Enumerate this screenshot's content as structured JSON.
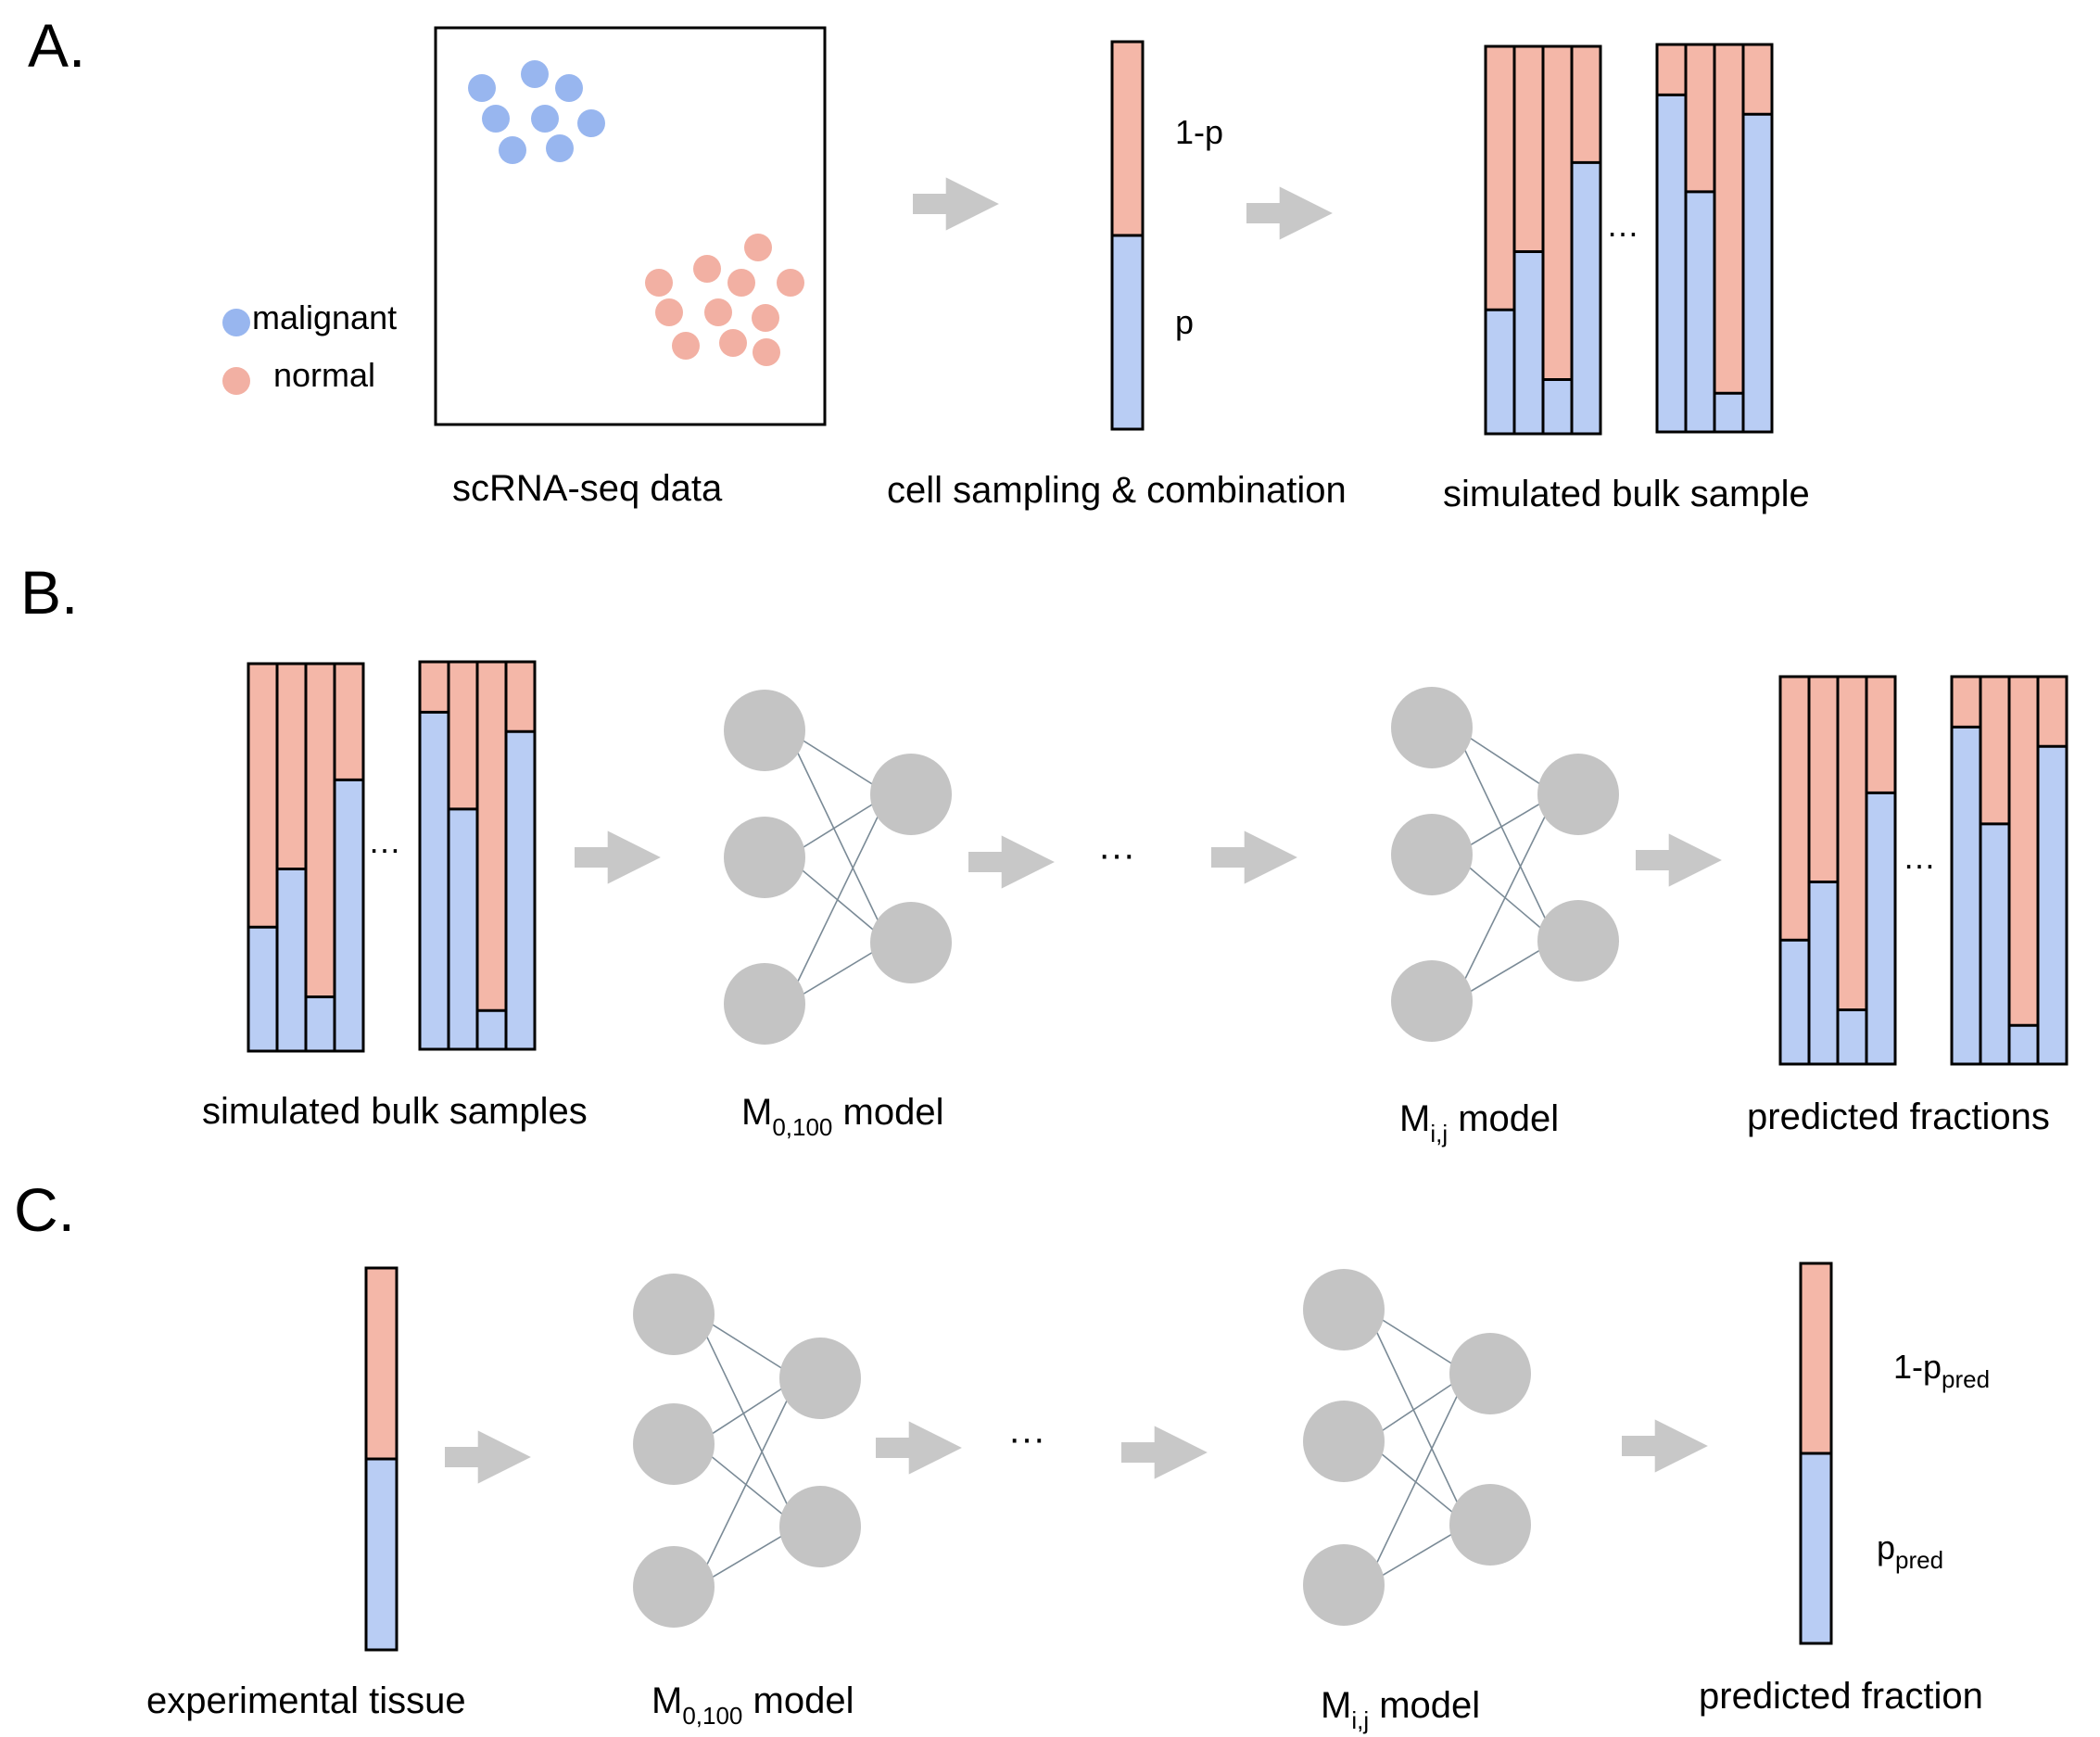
{
  "colors": {
    "malignant": "#98B6EF",
    "normal": "#F2B0A3",
    "bar_blue": "#B9CDF4",
    "bar_pink": "#F4B7A8",
    "node": "#C4C4C4",
    "edge": "#7A8A96",
    "arrow": "#C8C8C8",
    "outline": "#000000"
  },
  "panels": {
    "a": {
      "label": "A.",
      "scatter_caption": "scRNA-seq data",
      "legend": {
        "malignant": "malignant",
        "normal": "normal"
      },
      "sampling_caption": "cell sampling & combination",
      "one_minus_p": "1-p",
      "p": "p",
      "bulk_caption": "simulated bulk sample",
      "ellipsis": "…"
    },
    "b": {
      "label": "B.",
      "bulk_caption": "simulated bulk samples",
      "model1": {
        "main": "M",
        "sub": "0,100",
        "rest": " model"
      },
      "model2": {
        "main": "M",
        "sub": "i,j",
        "rest": " model"
      },
      "pred_caption": "predicted fractions",
      "ellipsis": "…",
      "dots": "···"
    },
    "c": {
      "label": "C.",
      "tissue_caption": "experimental tissue",
      "model1": {
        "main": "M",
        "sub": "0,100",
        "rest": " model"
      },
      "model2": {
        "main": "M",
        "sub": "i,j",
        "rest": " model"
      },
      "pred_caption": "predicted fraction",
      "one_minus_ppred": {
        "main": "1-p",
        "sub": "pred"
      },
      "ppred": {
        "main": "p",
        "sub": "pred"
      },
      "dots": "···"
    }
  },
  "bulk_groups": {
    "a_left": [
      0.32,
      0.47,
      0.14,
      0.7
    ],
    "a_right": [
      0.87,
      0.62,
      0.1,
      0.82
    ],
    "b_left": [
      0.32,
      0.47,
      0.14,
      0.7
    ],
    "b_right": [
      0.87,
      0.62,
      0.1,
      0.82
    ],
    "c_left": [
      0.32,
      0.47,
      0.14,
      0.7
    ],
    "c_right": [
      0.87,
      0.62,
      0.1,
      0.82
    ]
  },
  "single_bars": {
    "a_sampling": 0.5,
    "c_tissue": 0.5,
    "c_pred": 0.5
  }
}
